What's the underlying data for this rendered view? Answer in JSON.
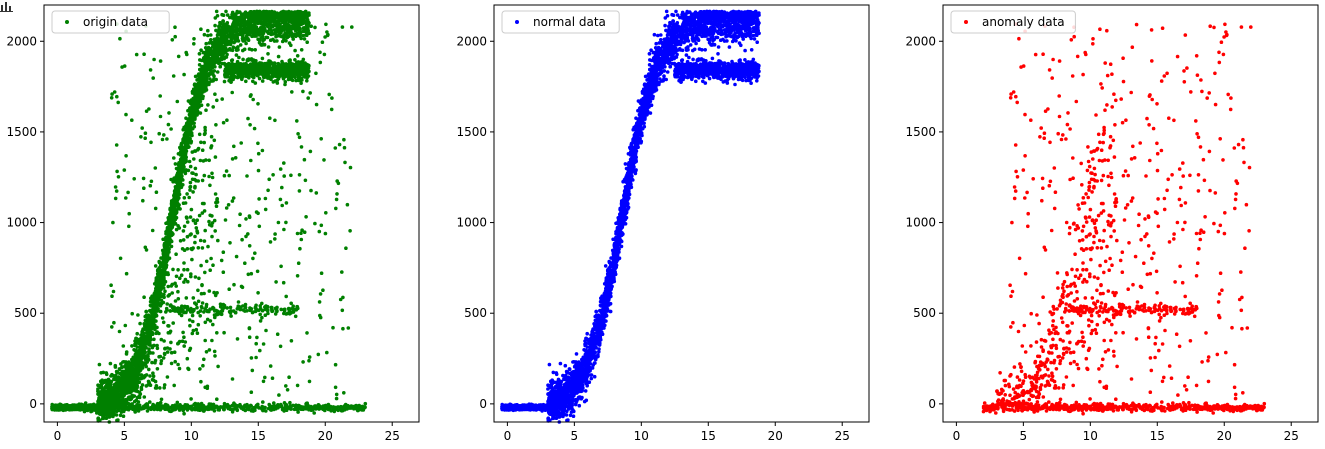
{
  "chart_data": [
    {
      "type": "scatter",
      "title": "",
      "xlabel": "",
      "ylabel": "",
      "xlim": [
        -1,
        27
      ],
      "ylim": [
        -100,
        2200
      ],
      "xticks": [
        "0",
        "5",
        "10",
        "15",
        "20",
        "25"
      ],
      "yticks": [
        "0",
        "500",
        "1000",
        "1500",
        "2000"
      ],
      "grid": false,
      "legend_position": "upper-left",
      "series": [
        {
          "name": "origin data",
          "color": "#008000",
          "points": []
        }
      ]
    },
    {
      "type": "scatter",
      "title": "",
      "xlabel": "",
      "ylabel": "",
      "xlim": [
        -1,
        27
      ],
      "ylim": [
        -100,
        2200
      ],
      "xticks": [
        "0",
        "5",
        "10",
        "15",
        "20",
        "25"
      ],
      "yticks": [
        "0",
        "500",
        "1000",
        "1500",
        "2000"
      ],
      "grid": false,
      "legend_position": "upper-left",
      "series": [
        {
          "name": "normal data",
          "color": "#0000ff",
          "points": []
        }
      ]
    },
    {
      "type": "scatter",
      "title": "",
      "xlabel": "",
      "ylabel": "",
      "xlim": [
        -1,
        27
      ],
      "ylim": [
        -100,
        2200
      ],
      "xticks": [
        "0",
        "5",
        "10",
        "15",
        "20",
        "25"
      ],
      "yticks": [
        "0",
        "500",
        "1000",
        "1500",
        "2000"
      ],
      "grid": false,
      "legend_position": "upper-left",
      "series": [
        {
          "name": "anomaly data",
          "color": "#ff0000",
          "points": []
        }
      ]
    }
  ]
}
